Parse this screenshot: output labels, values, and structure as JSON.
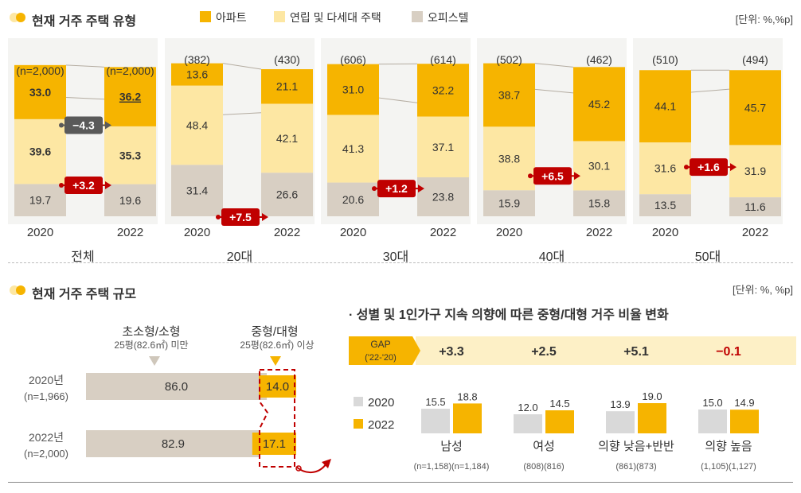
{
  "section1": {
    "title": "현재 거주 주택 유형",
    "unit": "[단위: %,%p]",
    "legend": [
      {
        "label": "아파트",
        "color": "#f6b400"
      },
      {
        "label": "연립 및 다세대 주택",
        "color": "#fde7a3"
      },
      {
        "label": "오피스텔",
        "color": "#d8cfc3"
      }
    ]
  },
  "chart_data": [
    {
      "type": "bar",
      "title": "현재 거주 주택 유형",
      "stacked": true,
      "unit": "%",
      "groups": [
        {
          "name": "전체",
          "years": [
            "2020",
            "2022"
          ],
          "n": [
            "(n=2,000)",
            "(n=2,000)"
          ],
          "apartment": [
            33.0,
            36.2
          ],
          "rowhouse": [
            39.6,
            35.3
          ],
          "officetel": [
            19.7,
            19.6
          ],
          "changes": [
            {
              "label": "+3.2",
              "series": "apartment",
              "color": "#c00000"
            },
            {
              "label": "-4.3",
              "series": "rowhouse",
              "color": "#595959"
            }
          ]
        },
        {
          "name": "20대",
          "years": [
            "2020",
            "2022"
          ],
          "n": [
            "(382)",
            "(430)"
          ],
          "apartment": [
            13.6,
            21.1
          ],
          "rowhouse": [
            48.4,
            42.1
          ],
          "officetel": [
            31.4,
            26.6
          ],
          "changes": [
            {
              "label": "+7.5",
              "series": "apartment",
              "color": "#c00000"
            }
          ]
        },
        {
          "name": "30대",
          "years": [
            "2020",
            "2022"
          ],
          "n": [
            "(606)",
            "(614)"
          ],
          "apartment": [
            31.0,
            32.2
          ],
          "rowhouse": [
            41.3,
            37.1
          ],
          "officetel": [
            20.6,
            23.8
          ],
          "changes": [
            {
              "label": "+1.2",
              "series": "apartment",
              "color": "#c00000"
            }
          ]
        },
        {
          "name": "40대",
          "years": [
            "2020",
            "2022"
          ],
          "n": [
            "(502)",
            "(462)"
          ],
          "apartment": [
            38.7,
            45.2
          ],
          "rowhouse": [
            38.8,
            30.1
          ],
          "officetel": [
            15.9,
            15.8
          ],
          "changes": [
            {
              "label": "+6.5",
              "series": "apartment",
              "color": "#c00000"
            }
          ]
        },
        {
          "name": "50대",
          "years": [
            "2020",
            "2022"
          ],
          "n": [
            "(510)",
            "(494)"
          ],
          "apartment": [
            44.1,
            45.7
          ],
          "rowhouse": [
            31.6,
            31.9
          ],
          "officetel": [
            13.5,
            11.6
          ],
          "changes": [
            {
              "label": "+1.6",
              "series": "apartment",
              "color": "#c00000"
            }
          ]
        }
      ]
    },
    {
      "type": "bar",
      "orientation": "horizontal",
      "title": "현재 거주 주택 규모",
      "categories": [
        "초소형/소형",
        "중형/대형"
      ],
      "category_notes": [
        "25평(82.6㎡) 미만",
        "25평(82.6㎡) 이상"
      ],
      "rows": [
        {
          "label": "2020년",
          "n": "(n=1,966)",
          "values": [
            86.0,
            14.0
          ]
        },
        {
          "label": "2022년",
          "n": "(n=2,000)",
          "values": [
            82.9,
            17.1
          ]
        }
      ]
    },
    {
      "type": "bar",
      "title": "성별 및 1인가구 지속 의향에 따른 중형/대형 거주 비율 변화",
      "categories": [
        "남성",
        "여성",
        "의향 낮음+반반",
        "의향 높음"
      ],
      "category_n": [
        "(n=1,158)(n=1,184)",
        "(808)(816)",
        "(861)(873)",
        "(1,105)(1,127)"
      ],
      "series": [
        {
          "name": "2020",
          "color": "#d9d9d9",
          "values": [
            15.5,
            12.0,
            13.9,
            15.0
          ]
        },
        {
          "name": "2022",
          "color": "#f6b400",
          "values": [
            18.8,
            14.5,
            19.0,
            14.9
          ]
        }
      ],
      "gap_label": "GAP",
      "gap_sublabel": "('22-'20)",
      "gaps": [
        "+3.3",
        "+2.5",
        "+5.1",
        "-0.1"
      ],
      "gap_colors": [
        "#333333",
        "#333333",
        "#333333",
        "#c00000"
      ]
    }
  ],
  "section2": {
    "title": "현재 거주 주택 규모",
    "unit": "[단위: %, %p]",
    "subtitle": "· 성별 및 1인가구 지속 의향에 따른 중형/대형 거주 비율 변화"
  }
}
